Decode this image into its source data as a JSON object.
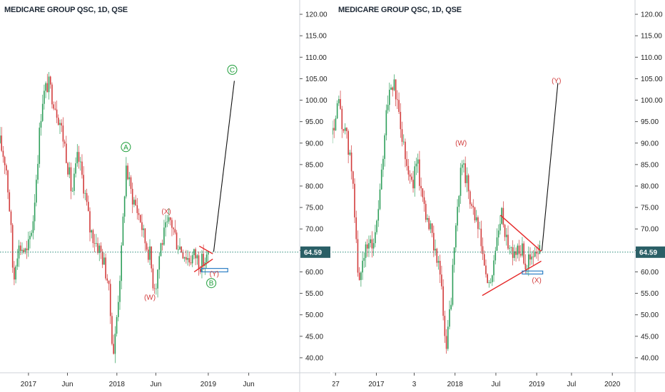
{
  "colors": {
    "up": "#2e9e5a",
    "down": "#d23c3c",
    "wick": "#5a5a5a",
    "grid_line": "#2a8c7a",
    "price_tag": "#2a5f66",
    "trend": "#e52a2a",
    "projection": "#111111",
    "box": "#2c7fc5",
    "axis": "#333333"
  },
  "chart_data": [
    {
      "type": "candlestick",
      "title": "MEDICARE GROUP QSC, 1D, QSE",
      "y_ticks": [
        "120.00",
        "115.00",
        "110.00",
        "105.00",
        "100.00",
        "95.00",
        "90.00",
        "85.00",
        "80.00",
        "75.00",
        "70.00",
        "65.00",
        "60.00",
        "55.00",
        "50.00",
        "45.00",
        "40.00"
      ],
      "ylim": [
        37,
        122
      ],
      "x_ticks": [
        "2017",
        "Jun",
        "2018",
        "Jun",
        "2019",
        "Jun"
      ],
      "x_tick_pos": [
        0.095,
        0.225,
        0.39,
        0.52,
        0.695,
        0.83
      ],
      "last_price": "64.59",
      "last_price_value": 64.59,
      "path": [
        [
          0.0,
          90
        ],
        [
          0.02,
          85
        ],
        [
          0.035,
          72
        ],
        [
          0.045,
          57
        ],
        [
          0.055,
          65
        ],
        [
          0.07,
          66
        ],
        [
          0.09,
          64
        ],
        [
          0.11,
          72
        ],
        [
          0.14,
          100
        ],
        [
          0.16,
          104
        ],
        [
          0.18,
          100
        ],
        [
          0.2,
          95
        ],
        [
          0.22,
          88
        ],
        [
          0.24,
          78
        ],
        [
          0.26,
          87
        ],
        [
          0.28,
          80
        ],
        [
          0.3,
          70
        ],
        [
          0.32,
          67
        ],
        [
          0.34,
          64
        ],
        [
          0.36,
          58
        ],
        [
          0.375,
          44
        ],
        [
          0.38,
          41
        ],
        [
          0.39,
          50
        ],
        [
          0.405,
          64
        ],
        [
          0.42,
          85
        ],
        [
          0.435,
          79
        ],
        [
          0.45,
          76
        ],
        [
          0.47,
          72
        ],
        [
          0.48,
          68
        ],
        [
          0.5,
          64
        ],
        [
          0.51,
          58
        ],
        [
          0.52,
          57
        ],
        [
          0.535,
          66
        ],
        [
          0.555,
          70
        ],
        [
          0.57,
          72
        ],
        [
          0.59,
          67
        ],
        [
          0.61,
          65
        ],
        [
          0.63,
          63
        ],
        [
          0.65,
          64
        ],
        [
          0.67,
          62
        ],
        [
          0.69,
          63
        ],
        [
          0.7,
          64.6
        ]
      ],
      "annotations": [
        {
          "label": "Ⓐ",
          "color": "green",
          "x": 0.42,
          "y": 88.5
        },
        {
          "label": "(X)",
          "color": "red",
          "x": 0.555,
          "y": 73.5
        },
        {
          "label": "(W)",
          "color": "red",
          "x": 0.5,
          "y": 53.5
        },
        {
          "label": "(Y)",
          "color": "red",
          "x": 0.715,
          "y": 59
        },
        {
          "label": "Ⓑ",
          "color": "green",
          "x": 0.705,
          "y": 56.8
        },
        {
          "label": "Ⓒ",
          "color": "green",
          "x": 0.775,
          "y": 106.5
        }
      ],
      "trendlines": [
        {
          "from": [
            0.665,
            66
          ],
          "to": [
            0.71,
            64.2
          ]
        },
        {
          "from": [
            0.648,
            60
          ],
          "to": [
            0.71,
            63.0
          ]
        }
      ],
      "projection": {
        "from": [
          0.713,
          64.7
        ],
        "to": [
          0.782,
          104.5
        ]
      },
      "box": {
        "x1": 0.672,
        "x2": 0.76,
        "y1": 60.8,
        "y2": 60.0
      }
    },
    {
      "type": "candlestick",
      "title": "MEDICARE GROUP QSC, 1D, QSE",
      "y_ticks": [
        "120.00",
        "115.00",
        "110.00",
        "105.00",
        "100.00",
        "95.00",
        "90.00",
        "85.00",
        "80.00",
        "75.00",
        "70.00",
        "65.00",
        "60.00",
        "55.00",
        "50.00",
        "45.00",
        "40.00"
      ],
      "ylim": [
        37,
        122
      ],
      "x_ticks": [
        "27",
        "2017",
        "3",
        "2018",
        "Jul",
        "2019",
        "Jul",
        "2020"
      ],
      "x_tick_pos": [
        0.01,
        0.145,
        0.27,
        0.405,
        0.54,
        0.675,
        0.79,
        0.925
      ],
      "last_price": "64.59",
      "last_price_value": 64.59,
      "path": [
        [
          0.0,
          92
        ],
        [
          0.02,
          99
        ],
        [
          0.03,
          95
        ],
        [
          0.05,
          90
        ],
        [
          0.07,
          80
        ],
        [
          0.08,
          63
        ],
        [
          0.09,
          56
        ],
        [
          0.1,
          64
        ],
        [
          0.12,
          66
        ],
        [
          0.14,
          68
        ],
        [
          0.16,
          80
        ],
        [
          0.18,
          100
        ],
        [
          0.2,
          104
        ],
        [
          0.22,
          97
        ],
        [
          0.24,
          88
        ],
        [
          0.26,
          80
        ],
        [
          0.28,
          85
        ],
        [
          0.3,
          77
        ],
        [
          0.32,
          70
        ],
        [
          0.34,
          66
        ],
        [
          0.355,
          60
        ],
        [
          0.37,
          46
        ],
        [
          0.375,
          41
        ],
        [
          0.39,
          52
        ],
        [
          0.4,
          63
        ],
        [
          0.415,
          75
        ],
        [
          0.425,
          88
        ],
        [
          0.44,
          82
        ],
        [
          0.46,
          76
        ],
        [
          0.48,
          70
        ],
        [
          0.5,
          63
        ],
        [
          0.51,
          57
        ],
        [
          0.52,
          56
        ],
        [
          0.535,
          64
        ],
        [
          0.55,
          70
        ],
        [
          0.56,
          73
        ],
        [
          0.58,
          67
        ],
        [
          0.6,
          64
        ],
        [
          0.62,
          66
        ],
        [
          0.64,
          62
        ],
        [
          0.66,
          63
        ],
        [
          0.675,
          64
        ],
        [
          0.69,
          64.6
        ]
      ],
      "annotations": [
        {
          "label": "(W)",
          "color": "red",
          "x": 0.425,
          "y": 89.5
        },
        {
          "label": "(Y)",
          "color": "red",
          "x": 0.74,
          "y": 104
        },
        {
          "label": "(X)",
          "color": "red",
          "x": 0.675,
          "y": 57.5
        }
      ],
      "trendlines": [
        {
          "from": [
            0.555,
            73.2
          ],
          "to": [
            0.69,
            64.8
          ]
        },
        {
          "from": [
            0.495,
            54.5
          ],
          "to": [
            0.69,
            62.5
          ]
        }
      ],
      "projection": {
        "from": [
          0.692,
          64.9
        ],
        "to": [
          0.745,
          104
        ]
      },
      "box": {
        "x1": 0.627,
        "x2": 0.695,
        "y1": 60.2,
        "y2": 59.5
      }
    }
  ]
}
